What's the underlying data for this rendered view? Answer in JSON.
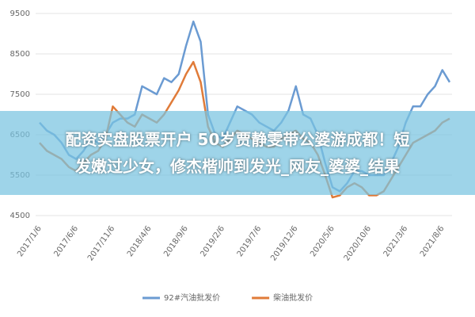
{
  "chart_data": {
    "type": "line",
    "categories": [
      "2017/1/6",
      null,
      null,
      null,
      null,
      "2017/6/6",
      null,
      null,
      null,
      null,
      "2017/11/6",
      null,
      null,
      null,
      null,
      "2018/4/6",
      null,
      null,
      null,
      null,
      "2018/9/6",
      null,
      null,
      null,
      null,
      "2019/2/6",
      null,
      null,
      null,
      null,
      "2019/7/6",
      null,
      null,
      null,
      null,
      "2019/12/6",
      null,
      null,
      null,
      null,
      "2020/5/6",
      null,
      null,
      null,
      null,
      "2020/10/6",
      null,
      null,
      null,
      null,
      "2021/3/6",
      null,
      null,
      null,
      null,
      "2021/8/6",
      null
    ],
    "series": [
      {
        "name": "92#汽油批发价",
        "color": "#6b9bd2",
        "values": [
          6800,
          6600,
          6500,
          6300,
          6000,
          5900,
          6100,
          6400,
          6300,
          6500,
          6800,
          6900,
          6900,
          7000,
          7700,
          7600,
          7500,
          7900,
          7800,
          8000,
          8700,
          9300,
          8800,
          7000,
          6500,
          6400,
          6800,
          7200,
          7100,
          7000,
          6800,
          6700,
          6600,
          6800,
          7100,
          7700,
          7000,
          6900,
          6500,
          5800,
          5200,
          5100,
          5300,
          5600,
          5600,
          5500,
          5500,
          5500,
          5800,
          6200,
          6800,
          7200,
          7200,
          7500,
          7700,
          8100,
          7800
        ]
      },
      {
        "name": "柴油批发价",
        "color": "#e07b39",
        "values": [
          6300,
          6100,
          6000,
          5900,
          5700,
          5600,
          5800,
          6000,
          6100,
          6400,
          7200,
          7000,
          6800,
          6700,
          7000,
          6900,
          6800,
          7000,
          7300,
          7600,
          8000,
          8300,
          7800,
          6700,
          6300,
          6200,
          6400,
          6600,
          6500,
          6400,
          6300,
          6200,
          6200,
          6400,
          6500,
          6600,
          6400,
          6300,
          6000,
          5500,
          4950,
          5000,
          5200,
          5300,
          5200,
          5000,
          5000,
          5100,
          5400,
          5700,
          6000,
          6300,
          6400,
          6500,
          6600,
          6800,
          6900
        ]
      }
    ],
    "ylim": [
      4500,
      9500
    ],
    "yticks": [
      4500,
      5500,
      6500,
      7500,
      8500,
      9500
    ],
    "grid": true
  },
  "banner": {
    "lines": [
      "配资实盘股票开户 50岁贾静雯带公婆游成都！短",
      "发嫩过少女，修杰楷帅到发光_网友_婆婆_结果"
    ]
  }
}
